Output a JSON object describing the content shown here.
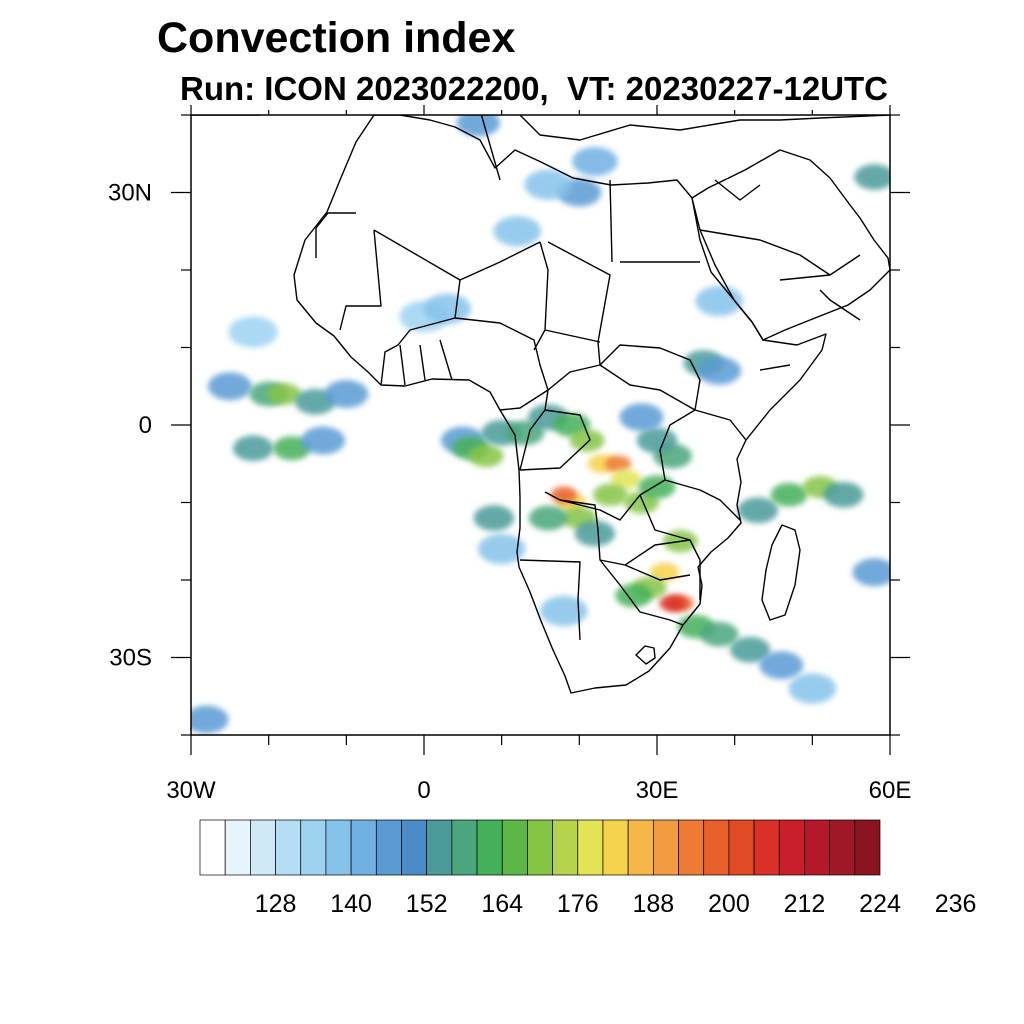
{
  "title": "Convection index",
  "subtitle": "Run: ICON 2023022200,  VT: 20230227-12UTC",
  "chart_data": {
    "type": "heatmap",
    "title": "Convection index",
    "subtitle": "Run: ICON 2023022200,  VT: 20230227-12UTC",
    "x_ticks": [
      "30W",
      "0",
      "30E",
      "60E"
    ],
    "y_ticks": [
      "30N",
      "0",
      "30S"
    ],
    "lon_range": [
      -30,
      60
    ],
    "lat_range": [
      -40,
      40
    ],
    "colorbar": {
      "labels": [
        "128",
        "140",
        "152",
        "164",
        "176",
        "188",
        "200",
        "212",
        "224",
        "236"
      ],
      "colors": [
        "#ffffff",
        "#e6f4fb",
        "#cfe9f7",
        "#b5def4",
        "#9dd3f1",
        "#86c3ea",
        "#70b0e2",
        "#5a9bd4",
        "#4a8dc6",
        "#4a9b9a",
        "#4aa67b",
        "#45b05a",
        "#5ab748",
        "#86c446",
        "#b4d34a",
        "#e2e455",
        "#f5d24b",
        "#f5b748",
        "#f39b40",
        "#ee7b33",
        "#e86029",
        "#e04a25",
        "#d93127",
        "#c91f2a",
        "#b5182b",
        "#9e1828",
        "#8a1520"
      ]
    },
    "cells": [
      {
        "lon": 0,
        "lat": 14,
        "v": 135
      },
      {
        "lon": 3,
        "lat": 15,
        "v": 140
      },
      {
        "lon": -25,
        "lat": 5,
        "v": 150
      },
      {
        "lon": -20,
        "lat": 4,
        "v": 165
      },
      {
        "lon": -18,
        "lat": 4,
        "v": 178
      },
      {
        "lon": -14,
        "lat": 3,
        "v": 160
      },
      {
        "lon": -10,
        "lat": 4,
        "v": 150
      },
      {
        "lon": -22,
        "lat": -3,
        "v": 160
      },
      {
        "lon": -17,
        "lat": -3,
        "v": 168
      },
      {
        "lon": -13,
        "lat": -2,
        "v": 150
      },
      {
        "lon": 5,
        "lat": -2,
        "v": 150
      },
      {
        "lon": 6,
        "lat": -3,
        "v": 170
      },
      {
        "lon": 8,
        "lat": -4,
        "v": 176
      },
      {
        "lon": 10,
        "lat": -1,
        "v": 160
      },
      {
        "lon": 13,
        "lat": -1,
        "v": 165
      },
      {
        "lon": 16,
        "lat": 1,
        "v": 160
      },
      {
        "lon": 19,
        "lat": 0,
        "v": 168
      },
      {
        "lon": 21,
        "lat": -2,
        "v": 176
      },
      {
        "lon": 23,
        "lat": -5,
        "v": 190
      },
      {
        "lon": 25,
        "lat": -5,
        "v": 205
      },
      {
        "lon": 26,
        "lat": -7,
        "v": 188
      },
      {
        "lon": 24,
        "lat": -9,
        "v": 176
      },
      {
        "lon": 19,
        "lat": -10,
        "v": 190
      },
      {
        "lon": 18,
        "lat": -9,
        "v": 210
      },
      {
        "lon": 20,
        "lat": -12,
        "v": 176
      },
      {
        "lon": 16,
        "lat": -12,
        "v": 165
      },
      {
        "lon": 22,
        "lat": -14,
        "v": 160
      },
      {
        "lon": 28,
        "lat": -10,
        "v": 176
      },
      {
        "lon": 30,
        "lat": -8,
        "v": 170
      },
      {
        "lon": 32,
        "lat": -4,
        "v": 165
      },
      {
        "lon": 30,
        "lat": -2,
        "v": 160
      },
      {
        "lon": 28,
        "lat": 1,
        "v": 150
      },
      {
        "lon": 36,
        "lat": 8,
        "v": 160
      },
      {
        "lon": 38,
        "lat": 7,
        "v": 150
      },
      {
        "lon": 33,
        "lat": -15,
        "v": 176
      },
      {
        "lon": 31,
        "lat": -19,
        "v": 190
      },
      {
        "lon": 33,
        "lat": -23,
        "v": 210
      },
      {
        "lon": 32,
        "lat": -23,
        "v": 220
      },
      {
        "lon": 29,
        "lat": -21,
        "v": 176
      },
      {
        "lon": 27,
        "lat": -22,
        "v": 170
      },
      {
        "lon": 35,
        "lat": -26,
        "v": 170
      },
      {
        "lon": 38,
        "lat": -27,
        "v": 165
      },
      {
        "lon": 42,
        "lat": -29,
        "v": 160
      },
      {
        "lon": 46,
        "lat": -31,
        "v": 150
      },
      {
        "lon": 50,
        "lat": -34,
        "v": 140
      },
      {
        "lon": 43,
        "lat": -11,
        "v": 160
      },
      {
        "lon": 47,
        "lat": -9,
        "v": 170
      },
      {
        "lon": 51,
        "lat": -8,
        "v": 176
      },
      {
        "lon": 54,
        "lat": -9,
        "v": 160
      },
      {
        "lon": 58,
        "lat": -19,
        "v": 150
      },
      {
        "lon": 18,
        "lat": -24,
        "v": 140
      },
      {
        "lon": 10,
        "lat": -16,
        "v": 140
      },
      {
        "lon": 9,
        "lat": -12,
        "v": 160
      },
      {
        "lon": 20,
        "lat": 30,
        "v": 150
      },
      {
        "lon": 16,
        "lat": 31,
        "v": 140
      },
      {
        "lon": 22,
        "lat": 34,
        "v": 145
      },
      {
        "lon": 12,
        "lat": 25,
        "v": 140
      },
      {
        "lon": 7,
        "lat": 39,
        "v": 152
      },
      {
        "lon": 38,
        "lat": 16,
        "v": 140
      },
      {
        "lon": 58,
        "lat": 32,
        "v": 160
      },
      {
        "lon": -28,
        "lat": -38,
        "v": 150
      },
      {
        "lon": -22,
        "lat": 12,
        "v": 135
      }
    ]
  }
}
